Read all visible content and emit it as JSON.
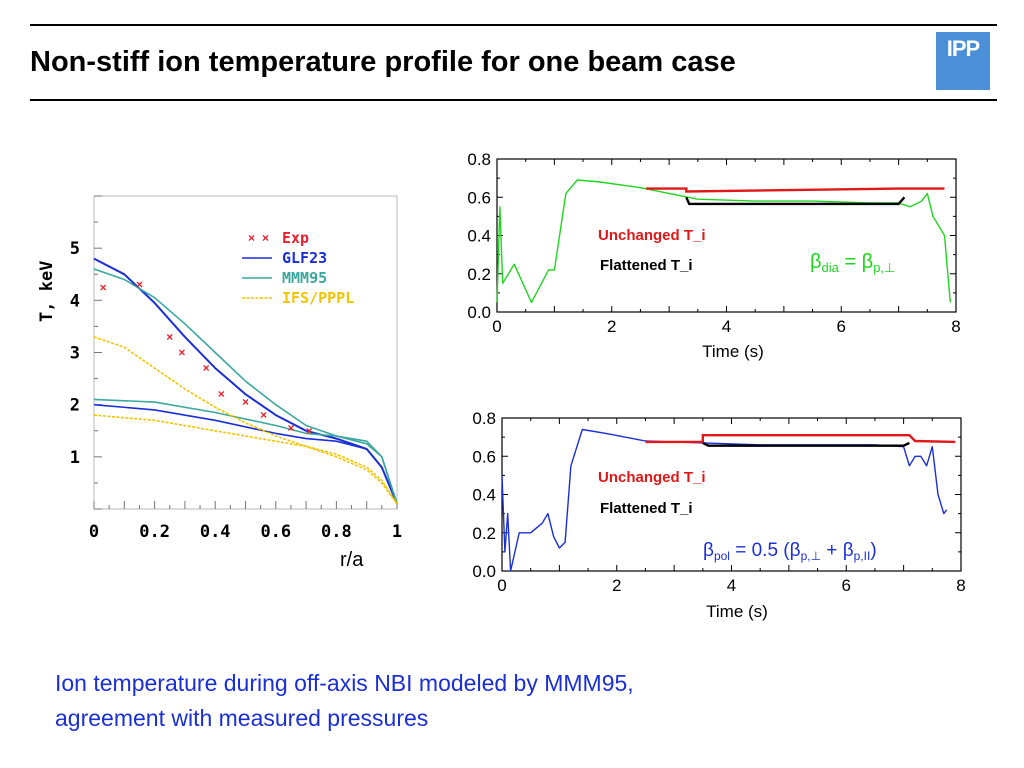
{
  "header": {
    "title": "Non-stiff ion temperature profile for one beam case",
    "logo_text": "IPP"
  },
  "caption": {
    "line1": "Ion temperature during off-axis NBI modeled by MMM95,",
    "line2": "agreement with measured pressures"
  },
  "colors": {
    "exp": "#e8202a",
    "glf23": "#1a2fd6",
    "mmm95": "#3aa7a0",
    "ifs": "#f2c400",
    "green": "#1fd61f",
    "red": "#e01818",
    "black": "#000000",
    "blue_trace": "#1a2fd6",
    "caption": "#1a2fd6",
    "logo": "#4a8fd8"
  },
  "chart_data": [
    {
      "type": "line",
      "xlabel": "r/a",
      "ylabel": "T, keV",
      "xlim": [
        0,
        1
      ],
      "ylim": [
        0,
        6
      ],
      "xticks": [
        "0",
        "0.2",
        "0.4",
        "0.6",
        "0.8",
        "1"
      ],
      "yticks": [
        "1",
        "2",
        "3",
        "4",
        "5"
      ],
      "legend": [
        "Exp",
        "GLF23",
        "MMM95",
        "IFS/PPPL"
      ],
      "legend_position": "top-right",
      "exp_points": {
        "x": [
          0.03,
          0.15,
          0.25,
          0.29,
          0.37,
          0.42,
          0.5,
          0.56,
          0.65,
          0.71
        ],
        "y": [
          4.25,
          4.3,
          3.3,
          3.0,
          2.7,
          2.2,
          2.05,
          1.8,
          1.55,
          1.5
        ]
      },
      "series": [
        {
          "name": "GLF23",
          "x": [
            0,
            0.1,
            0.2,
            0.3,
            0.4,
            0.5,
            0.6,
            0.7,
            0.8,
            0.9,
            0.95,
            1.0
          ],
          "y": [
            4.8,
            4.5,
            3.95,
            3.3,
            2.7,
            2.2,
            1.8,
            1.5,
            1.35,
            1.15,
            0.8,
            0.1
          ]
        },
        {
          "name": "GLF23",
          "x": [
            0,
            0.2,
            0.4,
            0.6,
            0.7,
            0.8,
            0.9,
            0.95,
            1.0
          ],
          "y": [
            2.0,
            1.9,
            1.7,
            1.45,
            1.35,
            1.3,
            1.15,
            0.8,
            0.1
          ]
        },
        {
          "name": "MMM95",
          "x": [
            0,
            0.1,
            0.2,
            0.3,
            0.4,
            0.5,
            0.6,
            0.7,
            0.8,
            0.9,
            0.95,
            1.0
          ],
          "y": [
            4.6,
            4.4,
            4.05,
            3.55,
            3.0,
            2.45,
            2.0,
            1.6,
            1.4,
            1.25,
            1.0,
            0.1
          ]
        },
        {
          "name": "MMM95",
          "x": [
            0,
            0.2,
            0.4,
            0.6,
            0.7,
            0.8,
            0.9,
            0.95,
            1.0
          ],
          "y": [
            2.1,
            2.05,
            1.85,
            1.6,
            1.45,
            1.4,
            1.3,
            1.0,
            0.1
          ]
        },
        {
          "name": "IFS/PPPL",
          "x": [
            0,
            0.1,
            0.2,
            0.3,
            0.4,
            0.5,
            0.6,
            0.7,
            0.8,
            0.9,
            0.95,
            1.0
          ],
          "y": [
            3.3,
            3.1,
            2.7,
            2.3,
            1.95,
            1.65,
            1.4,
            1.2,
            1.0,
            0.75,
            0.5,
            0.1
          ]
        },
        {
          "name": "IFS/PPPL",
          "x": [
            0,
            0.2,
            0.4,
            0.6,
            0.7,
            0.8,
            0.9,
            0.95,
            1.0
          ],
          "y": [
            1.8,
            1.7,
            1.5,
            1.3,
            1.2,
            1.05,
            0.8,
            0.55,
            0.1
          ]
        }
      ]
    },
    {
      "type": "line",
      "xlabel": "Time (s)",
      "ylabel": "",
      "xlim": [
        0,
        8
      ],
      "ylim": [
        0,
        0.8
      ],
      "xticks": [
        "0",
        "2",
        "4",
        "6",
        "8"
      ],
      "yticks": [
        "0.0",
        "0.2",
        "0.4",
        "0.6",
        "0.8"
      ],
      "annotations": [
        "Unchanged T_i",
        "Flattened T_i"
      ],
      "formula": {
        "lhs": "β",
        "lhs_sub": "dia",
        "rhs": "β",
        "rhs_sub": "p,⊥"
      },
      "series": [
        {
          "label": "",
          "x": [
            0,
            0.05,
            0.1,
            0.3,
            0.6,
            0.9,
            1.0,
            1.2,
            1.4,
            1.8,
            2.5,
            3.0,
            3.5,
            4.5,
            5.5,
            6.5,
            7.0,
            7.2,
            7.4,
            7.5,
            7.6,
            7.8,
            7.9
          ],
          "y": [
            0.05,
            0.55,
            0.15,
            0.25,
            0.05,
            0.22,
            0.22,
            0.62,
            0.69,
            0.68,
            0.65,
            0.62,
            0.59,
            0.58,
            0.58,
            0.57,
            0.57,
            0.55,
            0.58,
            0.62,
            0.5,
            0.4,
            0.05
          ]
        },
        {
          "label": "Unchanged T_i",
          "x": [
            2.6,
            3.3,
            3.3,
            7.0,
            7.05,
            7.8
          ],
          "y": [
            0.645,
            0.645,
            0.63,
            0.645,
            0.645,
            0.645
          ]
        },
        {
          "label": "Flattened T_i",
          "x": [
            3.3,
            3.35,
            7.0,
            7.1
          ],
          "y": [
            0.6,
            0.565,
            0.565,
            0.6
          ]
        }
      ]
    },
    {
      "type": "line",
      "xlabel": "Time (s)",
      "ylabel": "",
      "xlim": [
        0,
        8
      ],
      "ylim": [
        0,
        0.8
      ],
      "xticks": [
        "0",
        "2",
        "4",
        "6",
        "8"
      ],
      "yticks": [
        "0.0",
        "0.2",
        "0.4",
        "0.6",
        "0.8"
      ],
      "annotations": [
        "Unchanged T_i",
        "Flattened T_i"
      ],
      "formula": {
        "lhs": "β",
        "lhs_sub": "pol",
        "mid": " = 0.5 (",
        "a": "β",
        "a_sub": "p,⊥",
        "plus": " + ",
        "b": "β",
        "b_sub": "p,II",
        "end": ")"
      },
      "series": [
        {
          "label": "",
          "x": [
            0,
            0.05,
            0.1,
            0.15,
            0.3,
            0.5,
            0.7,
            0.8,
            0.9,
            1.0,
            1.1,
            1.2,
            1.4,
            1.8,
            2.5,
            3.5,
            4.5,
            5.5,
            6.5,
            7.0,
            7.1,
            7.2,
            7.3,
            7.4,
            7.5,
            7.6,
            7.7,
            7.75
          ],
          "y": [
            0.5,
            0.1,
            0.3,
            0.0,
            0.2,
            0.2,
            0.25,
            0.3,
            0.18,
            0.12,
            0.15,
            0.55,
            0.74,
            0.72,
            0.68,
            0.67,
            0.66,
            0.66,
            0.66,
            0.65,
            0.55,
            0.6,
            0.6,
            0.55,
            0.65,
            0.4,
            0.3,
            0.32
          ]
        },
        {
          "label": "Unchanged T_i",
          "x": [
            2.5,
            3.5,
            3.5,
            7.1,
            7.2,
            7.9
          ],
          "y": [
            0.675,
            0.675,
            0.71,
            0.71,
            0.68,
            0.675
          ]
        },
        {
          "label": "Flattened T_i",
          "x": [
            3.5,
            3.6,
            7.0,
            7.1
          ],
          "y": [
            0.67,
            0.655,
            0.655,
            0.67
          ]
        }
      ]
    }
  ]
}
